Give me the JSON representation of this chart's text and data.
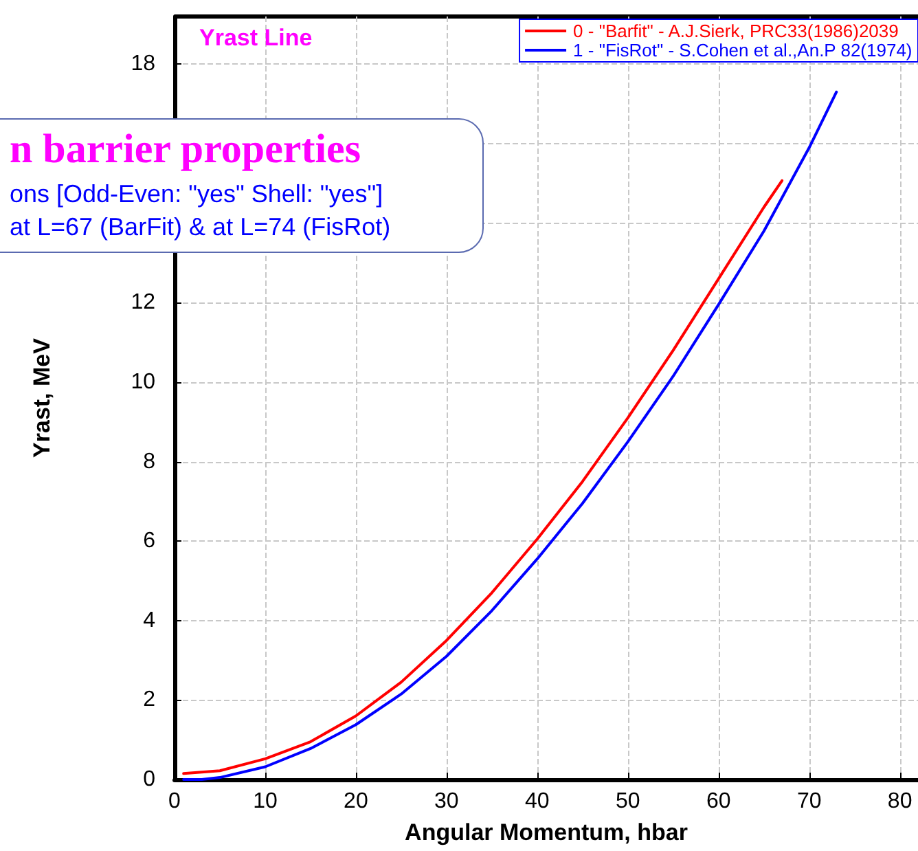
{
  "chart_data": {
    "type": "line",
    "title": "Yrast Line",
    "xlabel": "Angular Momentum, hbar",
    "ylabel": "Yrast, MeV",
    "annotations": [
      "n barrier properties",
      "ons [Odd-Even: \"yes\"  Shell: \"yes\"]",
      "at L=67 (BarFit) & at L=74 (FisRot)"
    ],
    "series": [
      {
        "name": "0 - \"Barfit\" - A.J.Sierk, PRC33(1986)2039",
        "color": "#ff0000",
        "x": [
          1,
          5,
          10,
          15,
          20,
          25,
          30,
          35,
          40,
          45,
          50,
          55,
          60,
          65,
          67
        ],
        "values": [
          0.15,
          0.22,
          0.52,
          0.95,
          1.6,
          2.45,
          3.5,
          4.7,
          6.05,
          7.5,
          9.1,
          10.8,
          12.6,
          14.4,
          15.07
        ]
      },
      {
        "name": "1 - \"FisRot\" - S.Cohen et al.,An.P 82(1974)",
        "color": "#0000ff",
        "x": [
          1,
          3,
          5,
          10,
          15,
          20,
          25,
          30,
          35,
          40,
          45,
          50,
          55,
          60,
          65,
          70,
          73
        ],
        "values": [
          0,
          0,
          0.05,
          0.32,
          0.78,
          1.38,
          2.15,
          3.1,
          4.25,
          5.55,
          6.95,
          8.5,
          10.15,
          11.95,
          13.8,
          15.9,
          17.3
        ]
      }
    ],
    "xlim": [
      0,
      82
    ],
    "xticks": [
      0,
      10,
      20,
      30,
      40,
      50,
      60,
      70,
      80
    ],
    "ylim": [
      0,
      19.2
    ],
    "yticks": [
      0,
      2,
      4,
      6,
      8,
      10,
      12,
      {
        "value": 14,
        "label": null
      },
      {
        "value": 16,
        "label": null
      },
      18
    ],
    "grid": true,
    "legend": "top right",
    "marker": "none",
    "line_style": "solid"
  }
}
